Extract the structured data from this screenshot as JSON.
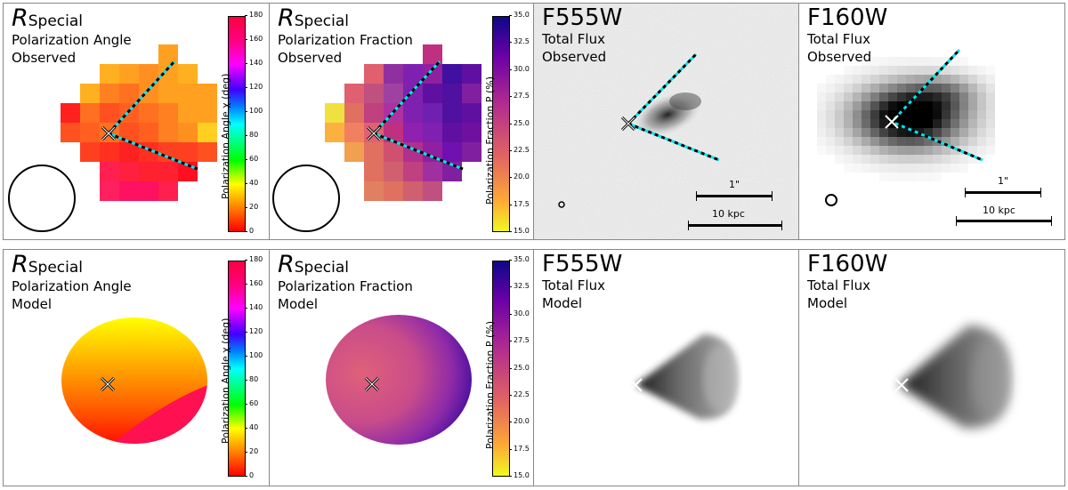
{
  "panels": {
    "obs_angle": {
      "title_main": "R",
      "title_sub": "Special",
      "line1": "Polarization Angle",
      "line2": "Observed"
    },
    "obs_frac": {
      "title_main": "R",
      "title_sub": "Special",
      "line1": "Polarization Fraction",
      "line2": "Observed"
    },
    "obs_f555": {
      "title_main": "F555W",
      "line1": "Total Flux",
      "line2": "Observed",
      "scale_arcsec": "1\"",
      "scale_kpc": "10 kpc"
    },
    "obs_f160": {
      "title_main": "F160W",
      "line1": "Total Flux",
      "line2": "Observed",
      "scale_arcsec": "1\"",
      "scale_kpc": "10 kpc"
    },
    "mod_angle": {
      "title_main": "R",
      "title_sub": "Special",
      "line1": "Polarization Angle",
      "line2": "Model"
    },
    "mod_frac": {
      "title_main": "R",
      "title_sub": "Special",
      "line1": "Polarization Fraction",
      "line2": "Model"
    },
    "mod_f555": {
      "title_main": "F555W",
      "line1": "Total Flux",
      "line2": "Model"
    },
    "mod_f160": {
      "title_main": "F160W",
      "line1": "Total Flux",
      "line2": "Model"
    }
  },
  "colorbars": {
    "angle": {
      "label": "Polarization Angle χ (deg)",
      "ticks": [
        "180",
        "160",
        "140",
        "120",
        "100",
        "80",
        "60",
        "40",
        "20",
        "0"
      ],
      "min": 0,
      "max": 180
    },
    "fraction": {
      "label": "Polarization Fraction P (%)",
      "ticks": [
        "35.0",
        "32.5",
        "30.0",
        "27.5",
        "25.0",
        "22.5",
        "20.0",
        "17.5",
        "15.0"
      ],
      "min": 15.0,
      "max": 35.0
    }
  },
  "colors": {
    "cone_line": "#00e5ee",
    "border": "#888888"
  }
}
